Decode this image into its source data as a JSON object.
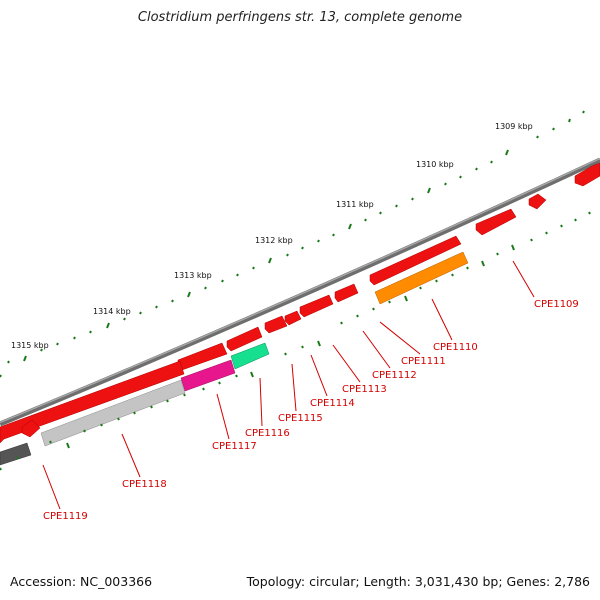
{
  "title": "Clostridium perfringens str. 13, complete genome",
  "footer": {
    "accession": "Accession: NC_003366",
    "summary": "Topology: circular; Length: 3,031,430 bp; Genes: 2,786"
  },
  "ticks": [
    {
      "label": "1309 kbp"
    },
    {
      "label": "1310 kbp"
    },
    {
      "label": "1311 kbp"
    },
    {
      "label": "1312 kbp"
    },
    {
      "label": "1313 kbp"
    },
    {
      "label": "1314 kbp"
    },
    {
      "label": "1315 kbp"
    }
  ],
  "genes": [
    {
      "name": "CPE1109"
    },
    {
      "name": "CPE1110"
    },
    {
      "name": "CPE1111"
    },
    {
      "name": "CPE1112"
    },
    {
      "name": "CPE1113"
    },
    {
      "name": "CPE1114"
    },
    {
      "name": "CPE1115"
    },
    {
      "name": "CPE1116"
    },
    {
      "name": "CPE1117"
    },
    {
      "name": "CPE1118"
    },
    {
      "name": "CPE1119"
    }
  ],
  "colors": {
    "backbone": "#7a7a7a",
    "gene_red": "#ee1111",
    "tick_green": "#1a7a1a",
    "label_red": "#d40000",
    "orange": "#ff8c00",
    "magenta": "#e8168c",
    "teal": "#16e090",
    "light_gray": "#c4c4c4",
    "dark_gray": "#555555"
  }
}
